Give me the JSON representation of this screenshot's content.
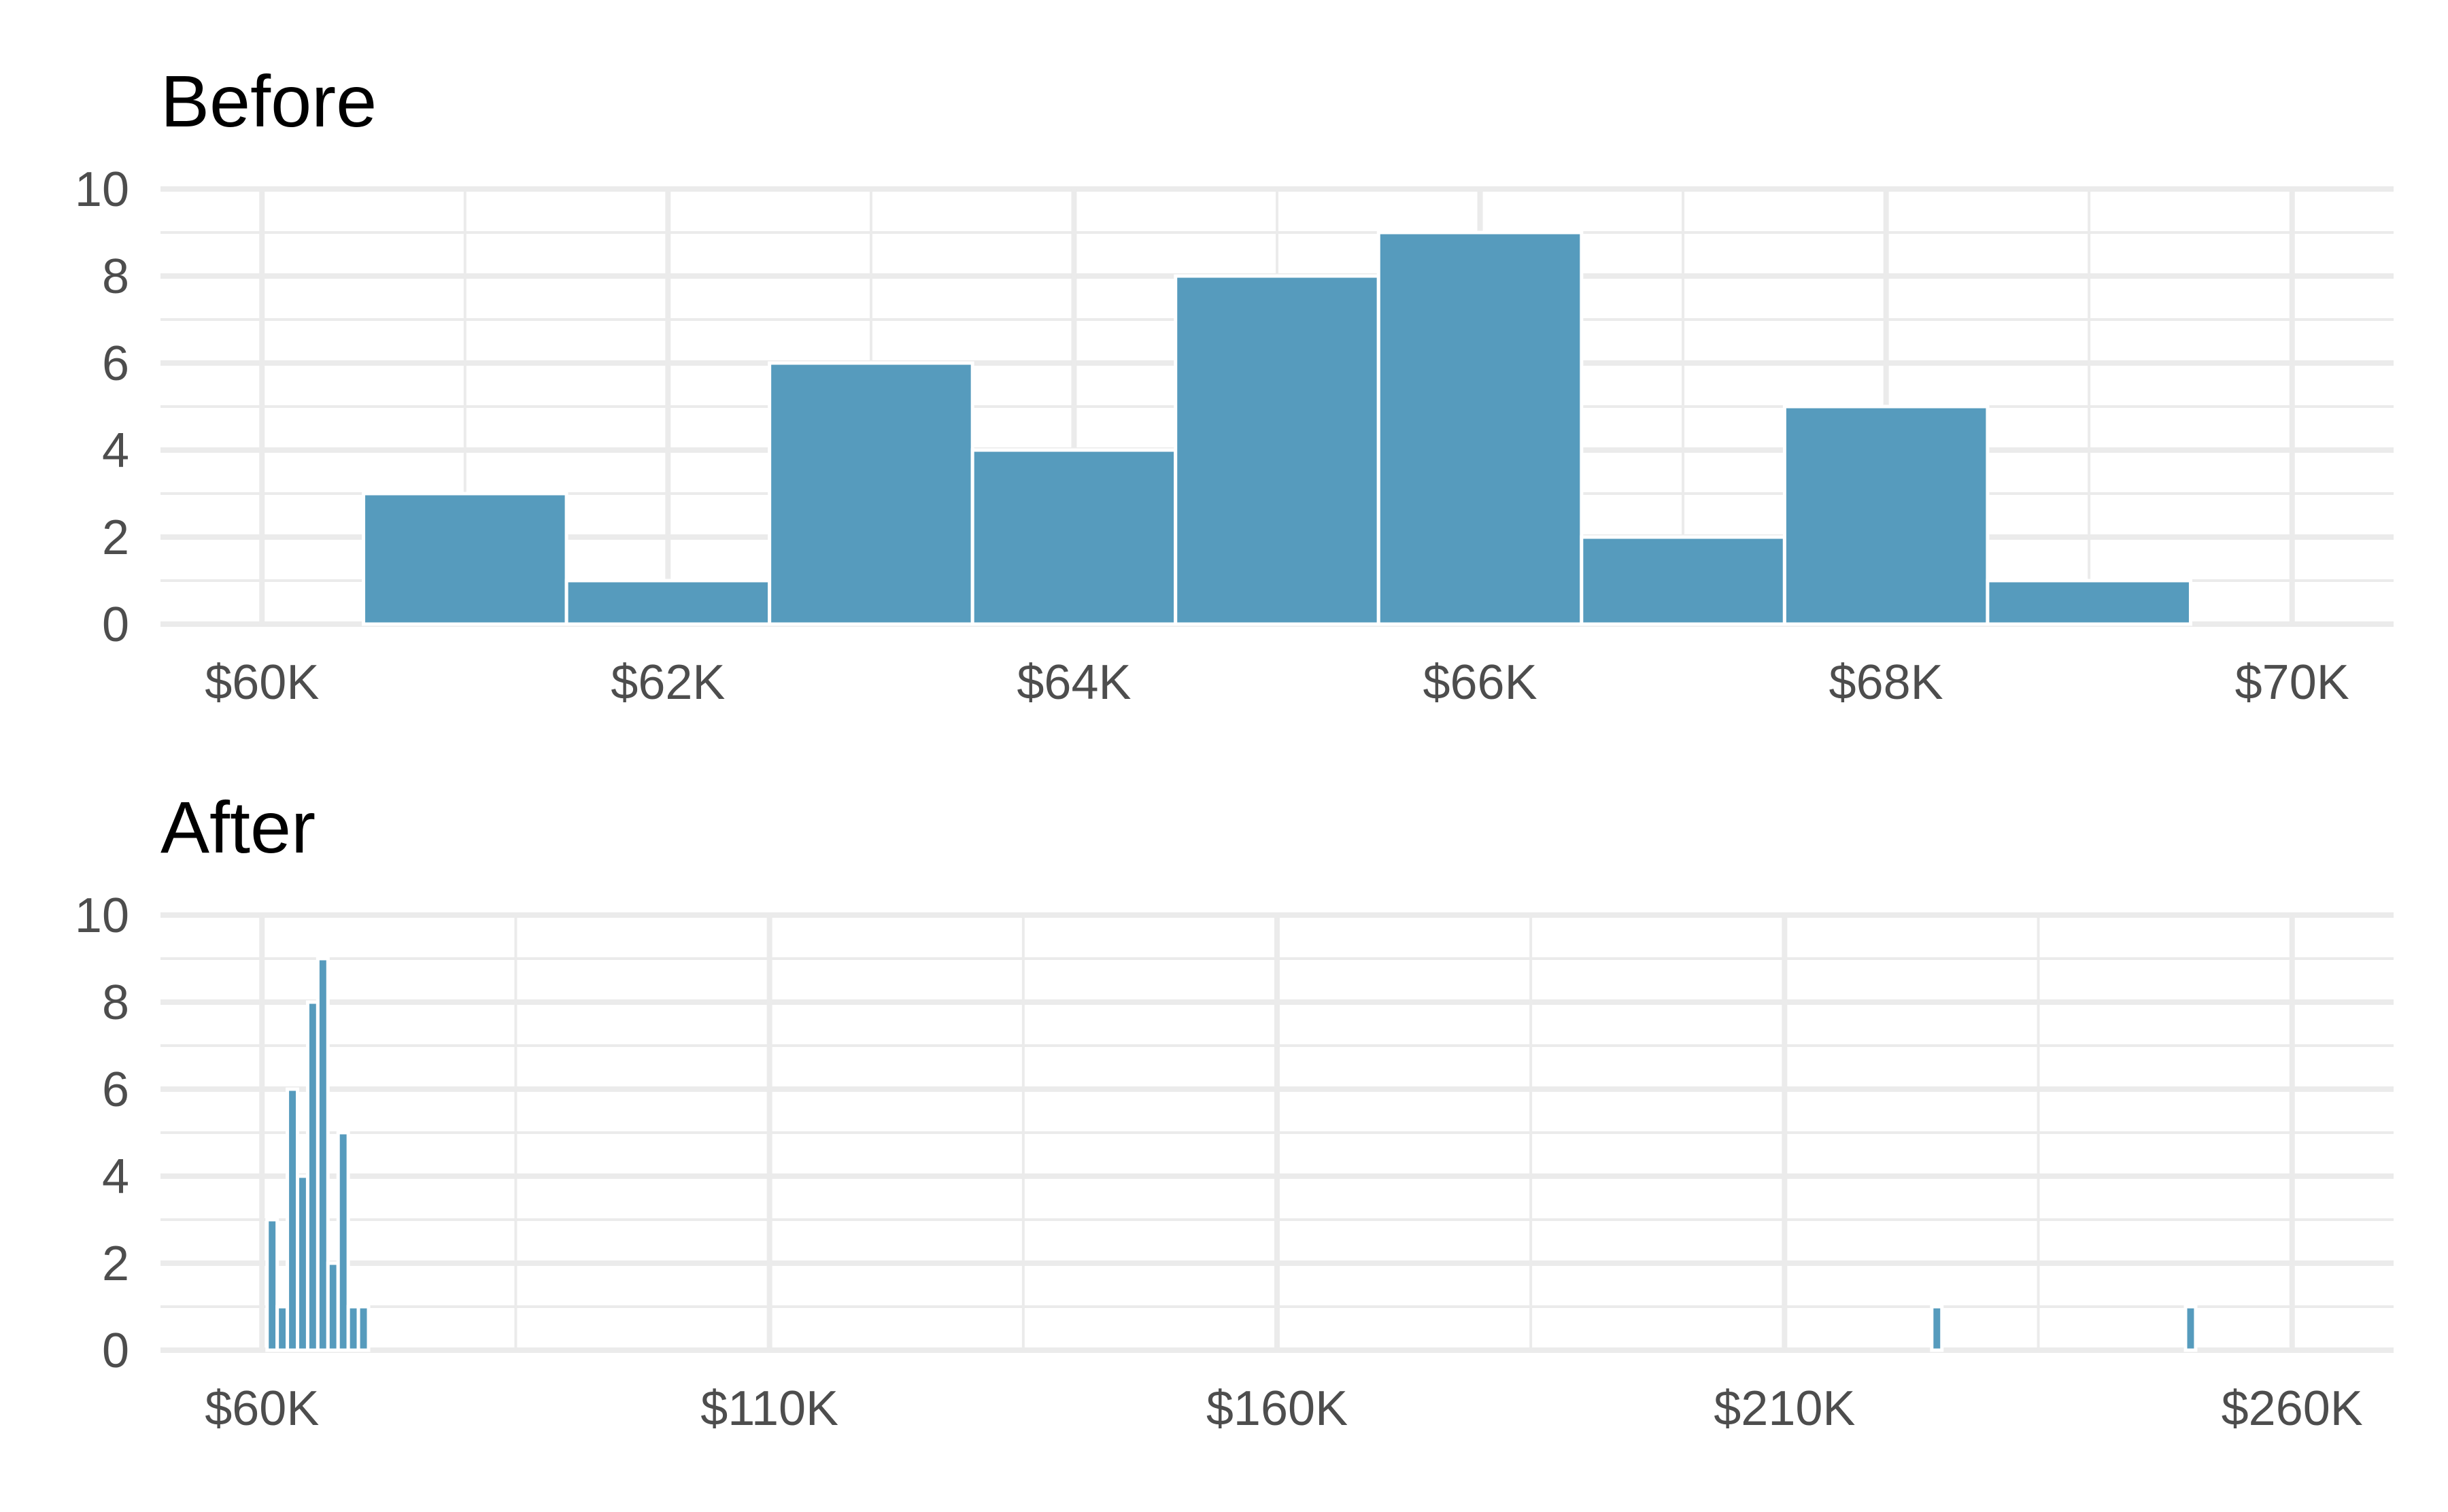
{
  "chart_data": [
    {
      "type": "bar",
      "title": "Before",
      "xlabel": "",
      "ylabel": "",
      "bin_width": 1000,
      "bin_starts": [
        60500,
        61500,
        62500,
        63500,
        64500,
        65500,
        66500,
        67500,
        68500
      ],
      "values": [
        3,
        1,
        6,
        4,
        8,
        9,
        2,
        5,
        1
      ],
      "xlim": [
        59500,
        70500
      ],
      "ylim": [
        0,
        10
      ],
      "x_ticks": [
        60000,
        62000,
        64000,
        66000,
        68000,
        70000
      ],
      "x_tick_labels": [
        "$60K",
        "$62K",
        "$64K",
        "$66K",
        "$68K",
        "$70K"
      ],
      "y_ticks": [
        0,
        2,
        4,
        6,
        8,
        10
      ],
      "y_tick_labels": [
        "0",
        "2",
        "4",
        "6",
        "8",
        "10"
      ],
      "grid": true,
      "bar_color": "#569bbd"
    },
    {
      "type": "bar",
      "title": "After",
      "xlabel": "",
      "ylabel": "",
      "bin_width": 1000,
      "bin_starts": [
        60500,
        61500,
        62500,
        63500,
        64500,
        65500,
        66500,
        67500,
        68500,
        69500,
        224500,
        249500
      ],
      "values": [
        3,
        1,
        6,
        4,
        8,
        9,
        2,
        5,
        1,
        1,
        1,
        1
      ],
      "xlim": [
        50000,
        270000
      ],
      "ylim": [
        0,
        10
      ],
      "x_ticks": [
        60000,
        110000,
        160000,
        210000,
        260000
      ],
      "x_tick_labels": [
        "$60K",
        "$110K",
        "$160K",
        "$210K",
        "$260K"
      ],
      "y_ticks": [
        0,
        2,
        4,
        6,
        8,
        10
      ],
      "y_tick_labels": [
        "0",
        "2",
        "4",
        "6",
        "8",
        "10"
      ],
      "grid": true,
      "bar_color": "#569bbd"
    }
  ]
}
